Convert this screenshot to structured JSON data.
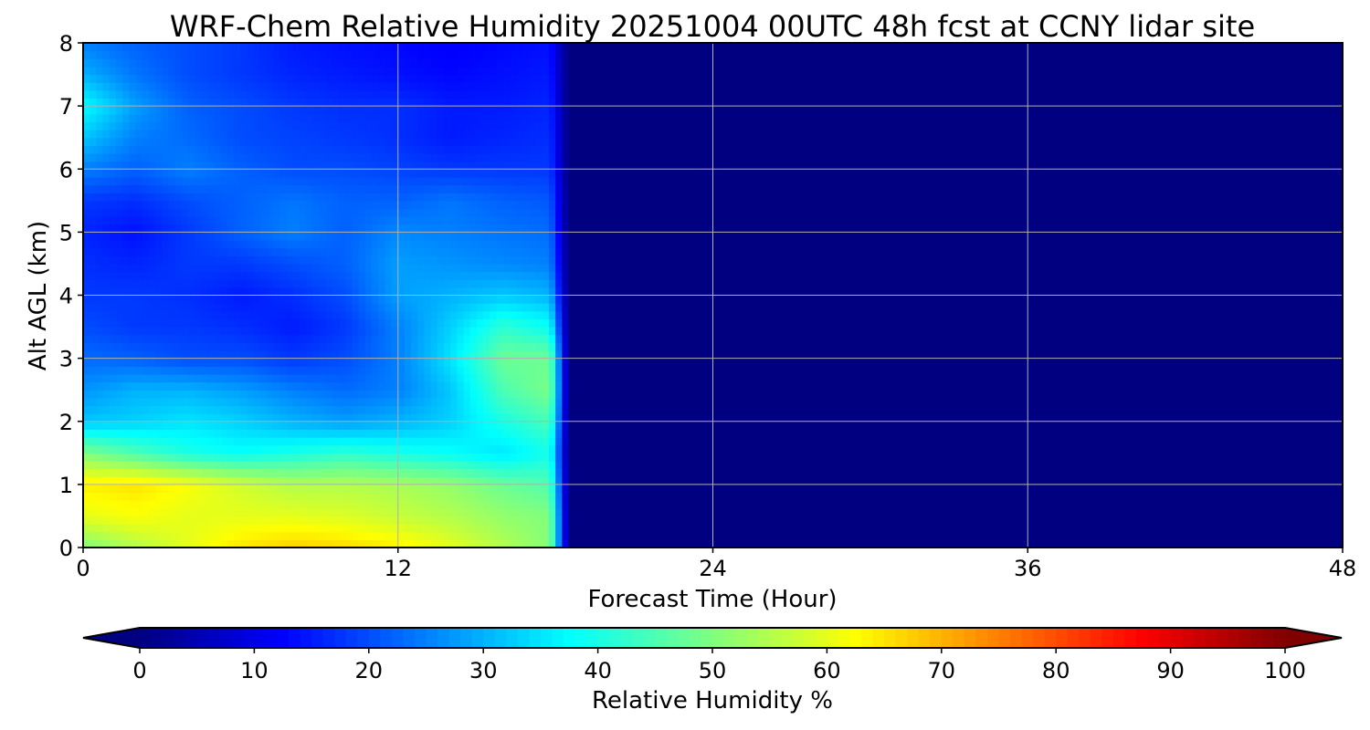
{
  "chart_data": {
    "type": "heatmap",
    "title": "WRF-Chem Relative Humidity 20251004 00UTC 48h fcst at CCNY lidar site",
    "xlabel": "Forecast Time (Hour)",
    "ylabel": "Alt AGL (km)",
    "xlim": [
      0,
      48
    ],
    "ylim": [
      0,
      8
    ],
    "x_ticks": [
      0,
      12,
      24,
      36,
      48
    ],
    "y_ticks": [
      0,
      1,
      2,
      3,
      4,
      5,
      6,
      7,
      8
    ],
    "grid": true,
    "colormap": "jet",
    "colorbar": {
      "label": "Relative Humidity %",
      "range": [
        0,
        100
      ],
      "ticks": [
        0,
        10,
        20,
        30,
        40,
        50,
        60,
        70,
        80,
        90,
        100
      ],
      "extend": "both",
      "orientation": "horizontal",
      "placement": "bottom"
    },
    "data_end_hour": 18.5,
    "fill_value_after_end": 0,
    "x": [
      0,
      2,
      4,
      6,
      8,
      10,
      12,
      14,
      16,
      18
    ],
    "y": [
      0,
      0.5,
      1,
      1.5,
      2,
      2.5,
      3,
      3.5,
      4,
      4.5,
      5,
      5.5,
      6,
      6.5,
      7,
      7.5,
      8
    ],
    "z": [
      [
        50,
        55,
        60,
        65,
        67,
        66,
        64,
        60,
        55,
        50
      ],
      [
        60,
        62,
        60,
        60,
        60,
        59,
        57,
        55,
        52,
        50
      ],
      [
        64,
        65,
        62,
        58,
        55,
        55,
        54,
        52,
        48,
        45
      ],
      [
        50,
        45,
        40,
        38,
        40,
        42,
        40,
        38,
        35,
        40
      ],
      [
        32,
        33,
        35,
        33,
        30,
        28,
        30,
        33,
        40,
        45
      ],
      [
        27,
        30,
        30,
        28,
        25,
        23,
        25,
        32,
        45,
        50
      ],
      [
        23,
        22,
        20,
        20,
        18,
        20,
        25,
        35,
        48,
        48
      ],
      [
        20,
        18,
        18,
        17,
        15,
        18,
        25,
        33,
        42,
        38
      ],
      [
        18,
        18,
        17,
        15,
        17,
        20,
        28,
        30,
        32,
        30
      ],
      [
        17,
        16,
        18,
        18,
        20,
        22,
        28,
        27,
        26,
        25
      ],
      [
        16,
        14,
        18,
        22,
        25,
        22,
        26,
        25,
        24,
        23
      ],
      [
        18,
        17,
        20,
        22,
        24,
        22,
        22,
        24,
        22,
        21
      ],
      [
        25,
        22,
        25,
        22,
        20,
        20,
        19,
        18,
        18,
        18
      ],
      [
        32,
        25,
        23,
        20,
        19,
        18,
        17,
        15,
        16,
        17
      ],
      [
        38,
        28,
        22,
        20,
        18,
        17,
        17,
        15,
        15,
        16
      ],
      [
        30,
        24,
        20,
        18,
        16,
        15,
        14,
        13,
        14,
        15
      ],
      [
        25,
        22,
        20,
        18,
        15,
        14,
        13,
        12,
        13,
        14
      ]
    ]
  }
}
